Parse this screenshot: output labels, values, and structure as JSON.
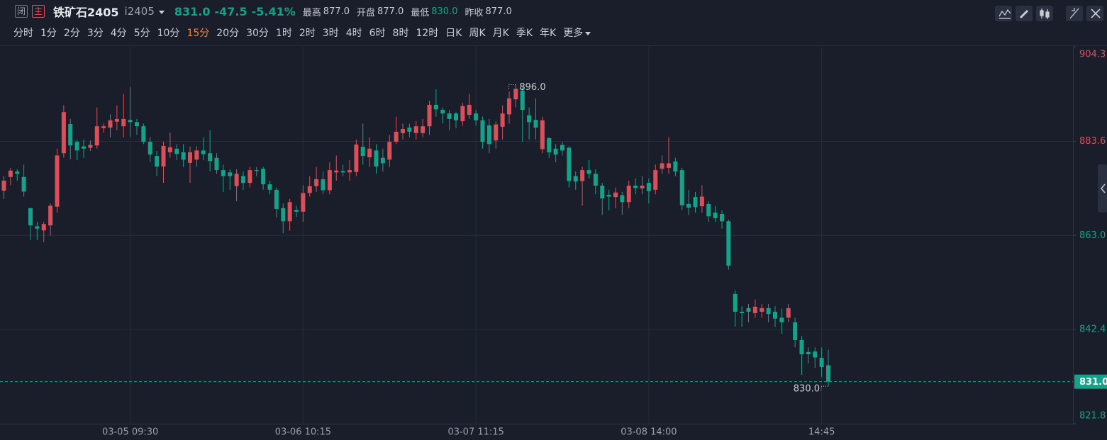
{
  "header": {
    "closed_tag": "闭",
    "main_tag": "主",
    "name": "铁矿石2405",
    "code": "i2405",
    "price": "831.0",
    "change": "-47.5",
    "change_pct": "-5.41%",
    "high_label": "最高",
    "high": "877.0",
    "open_label": "开盘",
    "open": "877.0",
    "low_label": "最低",
    "low": "830.0",
    "prev_close_label": "昨收",
    "prev_close": "877.0"
  },
  "periods": {
    "items": [
      "分时",
      "1分",
      "2分",
      "3分",
      "4分",
      "5分",
      "10分",
      "15分",
      "20分",
      "30分",
      "1时",
      "2时",
      "3时",
      "4时",
      "6时",
      "8时",
      "12时",
      "日K",
      "周K",
      "月K",
      "季K",
      "年K",
      "更多"
    ],
    "active": 7
  },
  "chart_data": {
    "type": "candlestick",
    "categories": [
      null,
      null,
      null,
      null,
      null,
      null,
      null,
      null,
      null,
      null,
      null,
      null,
      null,
      null,
      null,
      null,
      null,
      null,
      null,
      "03-05 09:30",
      null,
      null,
      null,
      null,
      null,
      null,
      null,
      null,
      null,
      null,
      null,
      null,
      null,
      null,
      null,
      null,
      null,
      null,
      null,
      null,
      null,
      null,
      null,
      null,
      null,
      "03-06 10:15",
      null,
      null,
      null,
      null,
      null,
      null,
      null,
      null,
      null,
      null,
      null,
      null,
      null,
      null,
      null,
      null,
      null,
      null,
      null,
      null,
      null,
      null,
      null,
      null,
      null,
      "03-07 11:15",
      null,
      null,
      null,
      null,
      null,
      null,
      null,
      null,
      null,
      null,
      null,
      null,
      null,
      null,
      null,
      null,
      null,
      null,
      null,
      null,
      null,
      null,
      null,
      null,
      null,
      "03-08 14:00",
      null,
      null,
      null,
      null,
      null,
      null,
      null,
      null,
      null,
      null,
      null,
      null,
      null,
      null,
      null,
      null,
      null,
      null,
      null,
      null,
      null,
      null,
      null,
      null,
      null,
      "14:45",
      null
    ],
    "open": [
      872.8,
      875.8,
      877,
      875.8,
      869,
      865,
      864.1,
      865.2,
      869.3,
      881,
      887.4,
      883.5,
      882.5,
      882.2,
      882.7,
      886.5,
      886.6,
      887.9,
      886.9,
      888.3,
      887.8,
      886.9,
      883.5,
      880.4,
      878.1,
      881.2,
      882,
      881.2,
      878.9,
      879.6,
      881.6,
      881,
      880,
      877.3,
      876.8,
      873.8,
      876,
      874.5,
      877.3,
      877.6,
      874.2,
      873,
      869,
      866.1,
      868.6,
      868.2,
      872.3,
      873.8,
      875.3,
      872.9,
      876.8,
      877.1,
      876.8,
      876.9,
      882.4,
      880.1,
      881.6,
      880,
      879.6,
      883.5,
      885.4,
      886.6,
      885.4,
      885.4,
      886.9,
      891.6,
      890.5,
      889.7,
      889.7,
      888,
      889.4,
      889.7,
      888.2,
      887.1,
      883.8,
      886.8,
      889.5,
      892.8,
      894.7,
      889.3,
      888.3,
      881.9,
      884.3,
      882,
      882.8,
      882.2,
      876,
      874.9,
      877.3,
      876.5,
      873.9,
      871.9,
      871.4,
      871.8,
      870.3,
      873.9,
      873.3,
      874.5,
      873,
      877.6,
      877.8,
      879.2,
      877.3,
      869.9,
      871.4,
      869.4,
      869.9,
      868,
      867.7,
      866.1,
      850.2,
      846.3,
      847.1,
      846,
      846.3,
      847.1,
      846.3,
      845,
      845,
      844,
      840.1,
      837.5,
      837.6,
      836.2,
      834.6
    ],
    "high": [
      876,
      877.8,
      877.5,
      878.5,
      869,
      866,
      866,
      870,
      882,
      891.5,
      888.5,
      884,
      884,
      883.8,
      891,
      887.5,
      889.5,
      891.5,
      894,
      895.5,
      888.5,
      887.5,
      884.5,
      881.5,
      883.5,
      885.5,
      883,
      883,
      882.5,
      882.5,
      884.5,
      886,
      881,
      878.5,
      877.5,
      877.5,
      877,
      878,
      878,
      878,
      875,
      873.5,
      870,
      871,
      869.5,
      874,
      876,
      878,
      877,
      879,
      880.5,
      878.5,
      879.5,
      884,
      887.5,
      884.5,
      883,
      882,
      885,
      889,
      887.5,
      887.5,
      888,
      888.5,
      892.5,
      895,
      891,
      890.5,
      890,
      892,
      894,
      890.5,
      889,
      888.5,
      888,
      891.5,
      894.5,
      896,
      895.5,
      891,
      893,
      889,
      884.5,
      883,
      883.5,
      882.5,
      877,
      878,
      879.5,
      877.5,
      874.5,
      873,
      873.5,
      872.5,
      875,
      875.5,
      876,
      875.5,
      878.5,
      880.5,
      884.5,
      880,
      877.8,
      873,
      872.5,
      874,
      870.5,
      869.5,
      868.5,
      866.5,
      851,
      847.5,
      848,
      849,
      848,
      848,
      847.5,
      847,
      848,
      845,
      841,
      838.5,
      838.5,
      838.5,
      838
    ],
    "low": [
      871,
      874,
      875,
      871.5,
      862,
      862,
      861.5,
      863,
      868,
      880,
      879.7,
      879.5,
      880,
      881.5,
      882,
      885.5,
      884.5,
      886,
      884.5,
      884.5,
      885,
      883,
      879,
      876,
      874.5,
      880,
      879.5,
      878,
      874.5,
      878,
      879.5,
      877,
      876.5,
      872.5,
      873,
      870.5,
      873,
      873.5,
      876,
      873,
      872,
      867,
      863.5,
      864,
      867,
      866,
      871.5,
      872.5,
      872,
      872,
      875,
      876,
      875,
      876,
      878.5,
      878,
      876.5,
      877,
      878,
      883,
      884,
      884.5,
      884,
      884.5,
      885,
      889,
      887.5,
      886,
      886.5,
      887,
      888.5,
      887,
      882,
      881,
      882,
      884,
      887.5,
      891,
      883.5,
      884,
      884,
      881,
      880,
      879,
      880.5,
      873.5,
      873,
      869.5,
      875.5,
      872,
      867.5,
      868.5,
      869,
      867.5,
      869,
      872,
      872,
      870,
      872,
      876.5,
      876.5,
      876,
      868.5,
      867.5,
      868,
      868,
      866,
      866,
      864.5,
      855.5,
      843,
      843,
      844,
      845,
      845,
      844,
      843,
      841.5,
      844,
      838.5,
      832.5,
      835,
      834,
      832,
      830
    ],
    "close": [
      875,
      877.2,
      876.5,
      872.6,
      865.2,
      864.5,
      865.5,
      869.5,
      880.5,
      890,
      882.7,
      881.6,
      882,
      882.8,
      886.9,
      886.9,
      888.2,
      888.5,
      888.5,
      887.8,
      886.9,
      883.5,
      880.7,
      878.1,
      882.6,
      882.3,
      880.8,
      879.6,
      881.2,
      881.6,
      880.8,
      879.3,
      877.3,
      876,
      876,
      876.5,
      874.5,
      877.3,
      877.1,
      874.2,
      873,
      868.8,
      866.1,
      870.3,
      868.2,
      872.3,
      873.8,
      875.3,
      872.9,
      877.3,
      877.2,
      876.8,
      877.3,
      882.9,
      880.4,
      882,
      878.1,
      878.8,
      883.5,
      885.7,
      886.3,
      885.7,
      886.9,
      886.9,
      891.6,
      890.6,
      889.7,
      888.5,
      888.2,
      891.3,
      891.6,
      888.2,
      883.5,
      883,
      887.3,
      889.7,
      893,
      895.1,
      890.5,
      887.8,
      886.6,
      888.2,
      881.2,
      880.7,
      881.6,
      874.9,
      874.8,
      877.3,
      876.5,
      873.9,
      871.1,
      871.5,
      872.4,
      870.3,
      873.9,
      873.4,
      873.9,
      872.7,
      877.3,
      878.8,
      878.8,
      877,
      869.6,
      869.1,
      869.2,
      871.5,
      867.2,
      866.8,
      866.1,
      856.4,
      846.3,
      846,
      846.3,
      847.4,
      847.1,
      845.8,
      844.8,
      844,
      847.1,
      840.1,
      837,
      837,
      836.3,
      834.2,
      831
    ],
    "up_color": "#d9505b",
    "down_color": "#14a38a",
    "ylim": [
      821.8,
      904.3
    ],
    "yticks": [
      821.8,
      842.4,
      {
        "value": 863.0,
        "label": "863.0"
      },
      883.6,
      904.3
    ],
    "grid": true,
    "last_price": {
      "value": 831.0,
      "label": "831.0"
    },
    "high_label": {
      "value": 896.0,
      "label": "896.0"
    },
    "low_label": {
      "value": 830.0,
      "label": "830.0"
    }
  }
}
